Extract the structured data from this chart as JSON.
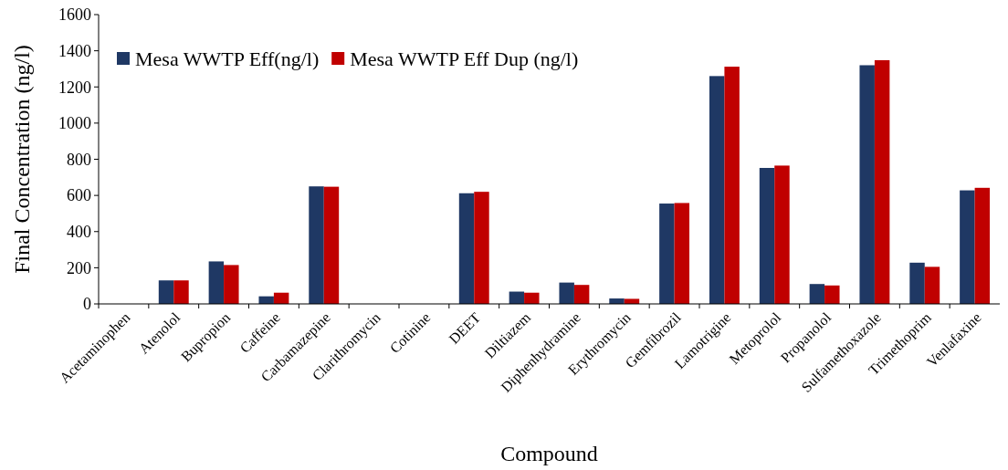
{
  "chart_data": {
    "type": "bar",
    "xlabel": "Compound",
    "ylabel": "Final Concentration (ng/l)",
    "categories": [
      "Acetaminophen",
      "Atenolol",
      "Bupropion",
      "Caffeine",
      "Carbamazepine",
      "Clarithromycin",
      "Cotinine",
      "DEET",
      "Diltiazem",
      "Diphenhydramine",
      "Erythromycin",
      "Gemfibrozil",
      "Lamotrigine",
      "Metoprolol",
      "Propanolol",
      "Sulfamethoxazole",
      "Trimethoprim",
      "Venlafaxine"
    ],
    "series": [
      {
        "name": "Mesa WWTP Eff(ng/l)",
        "color": "#1f3864",
        "values": [
          0,
          130,
          235,
          42,
          650,
          0,
          0,
          612,
          68,
          118,
          30,
          555,
          1260,
          752,
          110,
          1320,
          228,
          628
        ]
      },
      {
        "name": "Mesa WWTP Eff Dup (ng/l)",
        "color": "#c00000",
        "values": [
          0,
          130,
          215,
          62,
          648,
          0,
          0,
          620,
          62,
          105,
          28,
          558,
          1312,
          765,
          102,
          1348,
          205,
          642
        ]
      }
    ],
    "ylim": [
      0,
      1600
    ],
    "yticks": [
      0,
      200,
      400,
      600,
      800,
      1000,
      1200,
      1400,
      1600
    ],
    "grid": false,
    "legend": "top left"
  }
}
